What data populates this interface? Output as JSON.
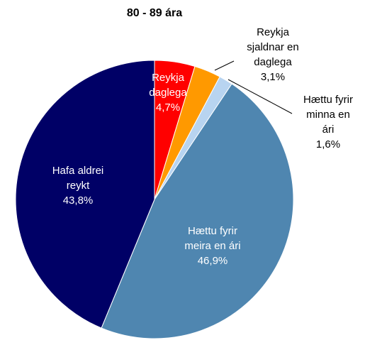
{
  "chart_data": {
    "type": "pie",
    "title": "80 - 89 ára",
    "categories": [
      "Reykja daglega",
      "Reykja sjaldnar en daglega",
      "Hættu fyrir minna en ári",
      "Hættu fyrir meira en ári",
      "Hafa aldrei reykt"
    ],
    "values": [
      4.7,
      3.1,
      1.6,
      46.9,
      43.8
    ],
    "value_labels": [
      "4,7%",
      "3,1%",
      "1,6%",
      "46,9%",
      "43,8%"
    ],
    "colors": [
      "#ff0000",
      "#ff9900",
      "#b8d4f0",
      "#4f86b0",
      "#000066"
    ]
  }
}
